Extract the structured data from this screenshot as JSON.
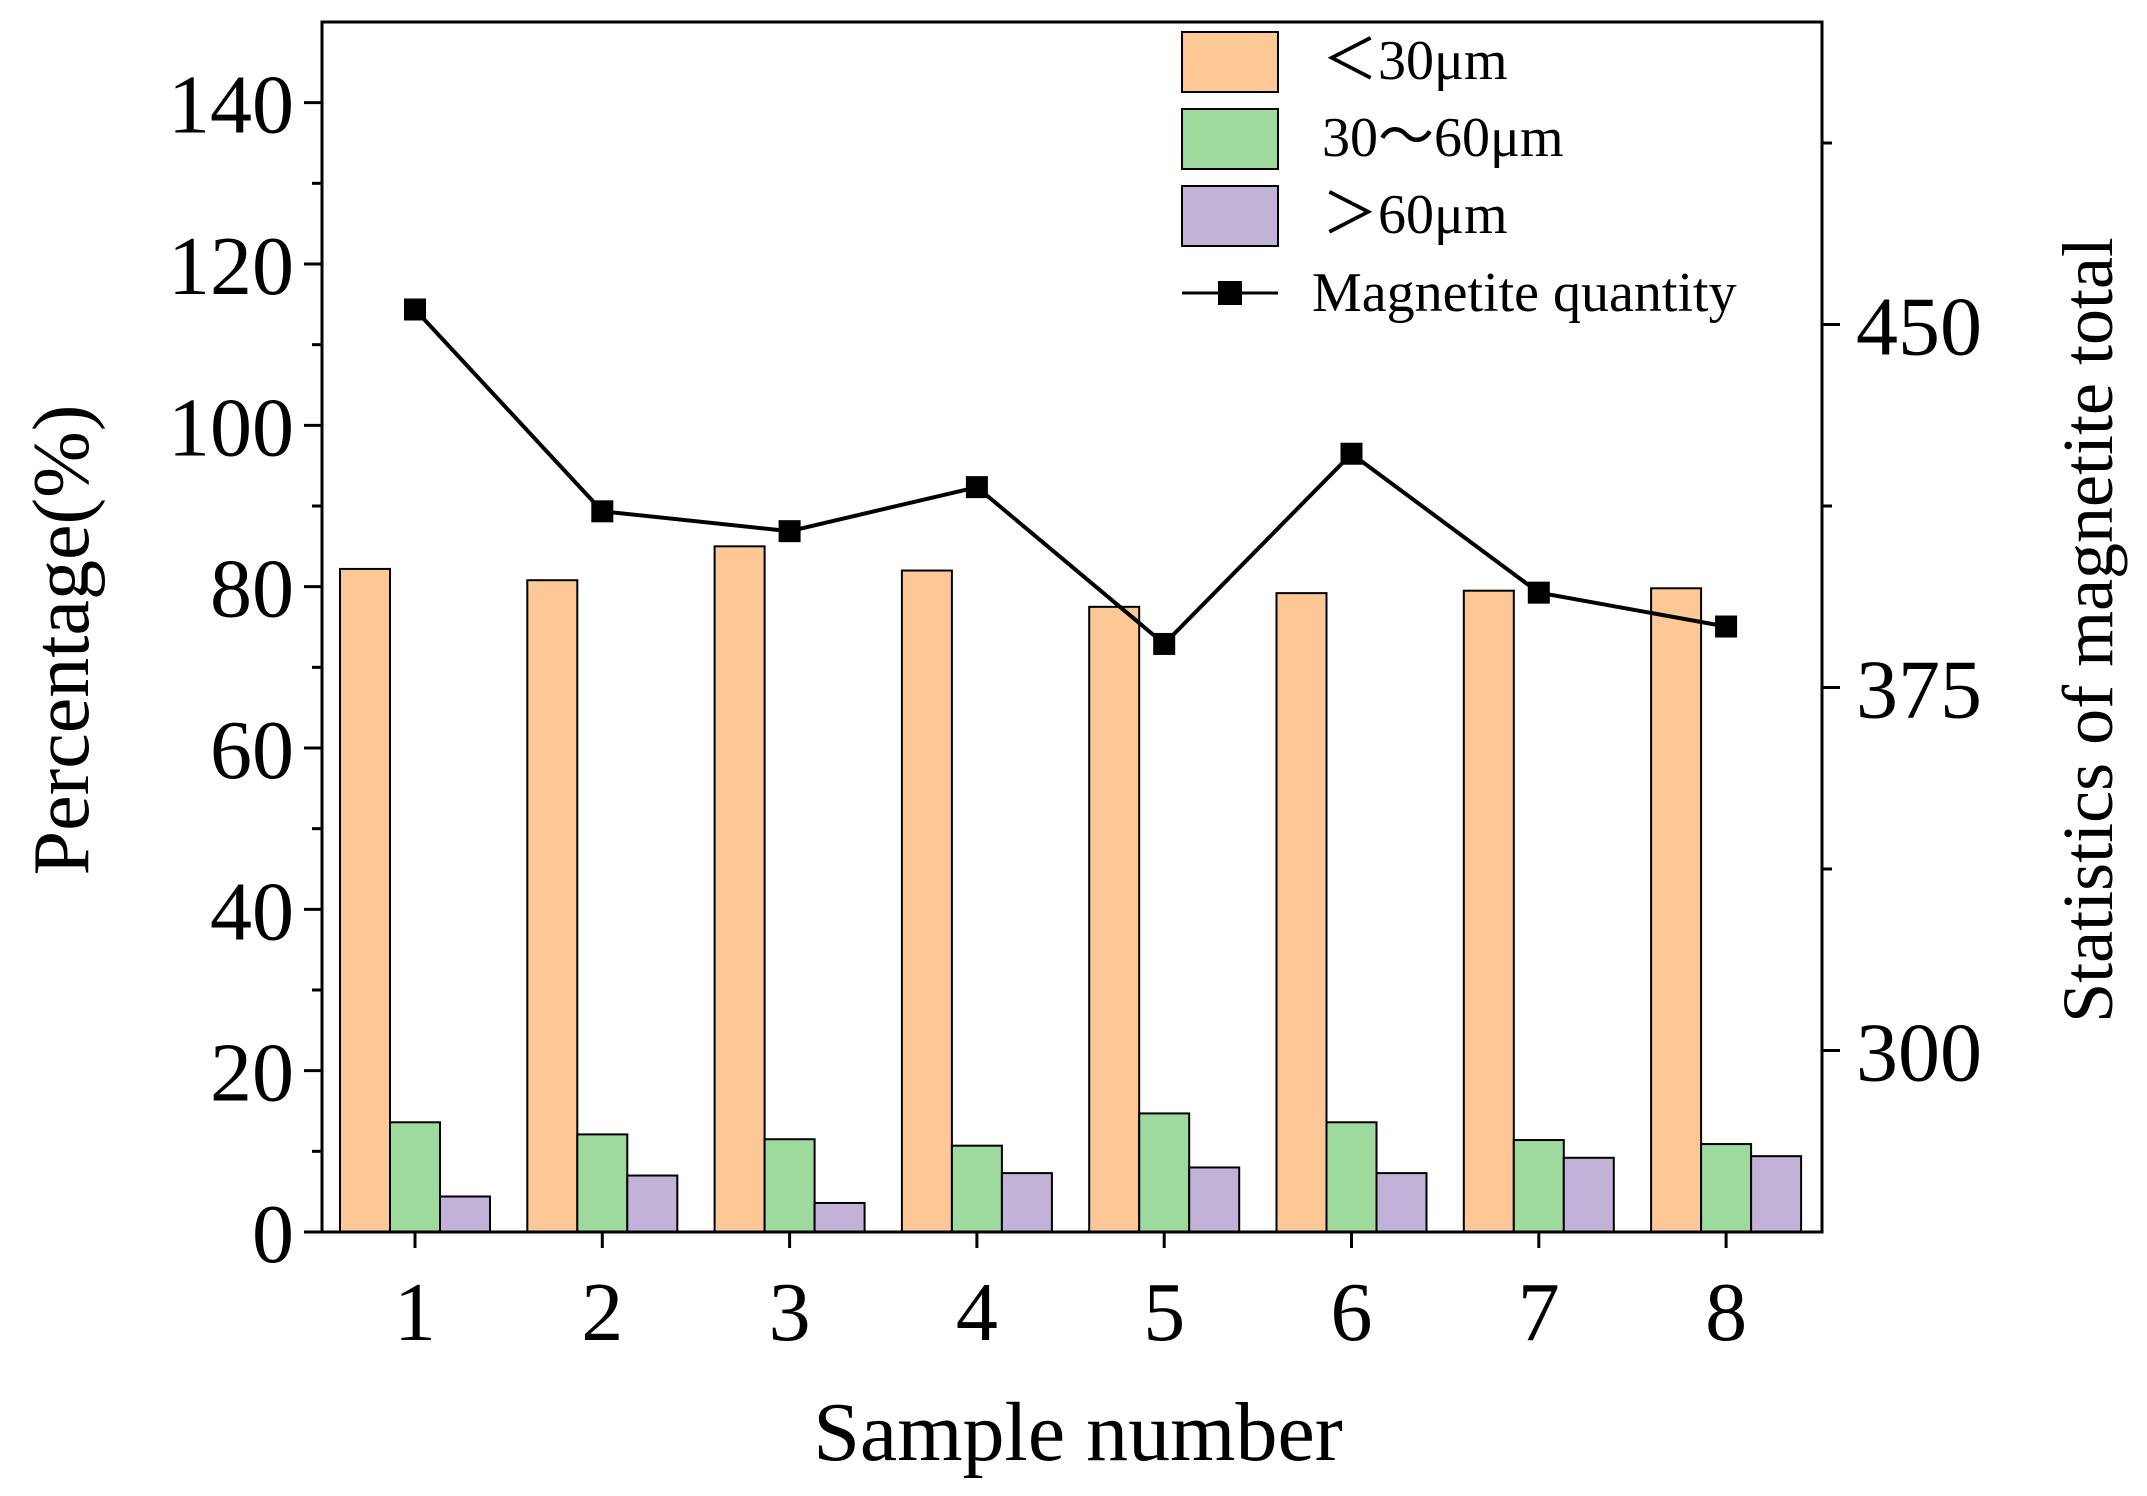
{
  "chart_data": {
    "type": "bar",
    "categories": [
      "1",
      "2",
      "3",
      "4",
      "5",
      "6",
      "7",
      "8"
    ],
    "xlabel": "Sample number",
    "ylabel": "Percentage(%)",
    "y2label": "Statistics of magnetite total",
    "ylim": [
      0,
      150
    ],
    "yticks": [
      0,
      20,
      40,
      60,
      80,
      100,
      120,
      140
    ],
    "y2lim": [
      262.5,
      512.5
    ],
    "y2ticks": [
      300,
      375,
      450
    ],
    "series": [
      {
        "name": "＜30μm",
        "kind": "bar",
        "color": "#FDC896",
        "values": [
          82.2,
          80.8,
          85.0,
          82.0,
          77.5,
          79.2,
          79.5,
          79.8
        ]
      },
      {
        "name": "30～60μm",
        "kind": "bar",
        "color": "#9ED99E",
        "values": [
          13.6,
          12.1,
          11.5,
          10.7,
          14.7,
          13.6,
          11.4,
          10.9
        ]
      },
      {
        "name": "＞60μm",
        "kind": "bar",
        "color": "#C2B2D8",
        "values": [
          4.4,
          7.0,
          3.6,
          7.3,
          8.0,
          7.3,
          9.2,
          9.4
        ]
      }
    ],
    "line_series": {
      "name": "Magnetite quantity",
      "color": "#000000",
      "axis": "right",
      "values": [
        453.1,
        411.4,
        407.3,
        416.4,
        384.0,
        423.3,
        394.6,
        387.6
      ]
    },
    "legend_position": "top-right"
  }
}
